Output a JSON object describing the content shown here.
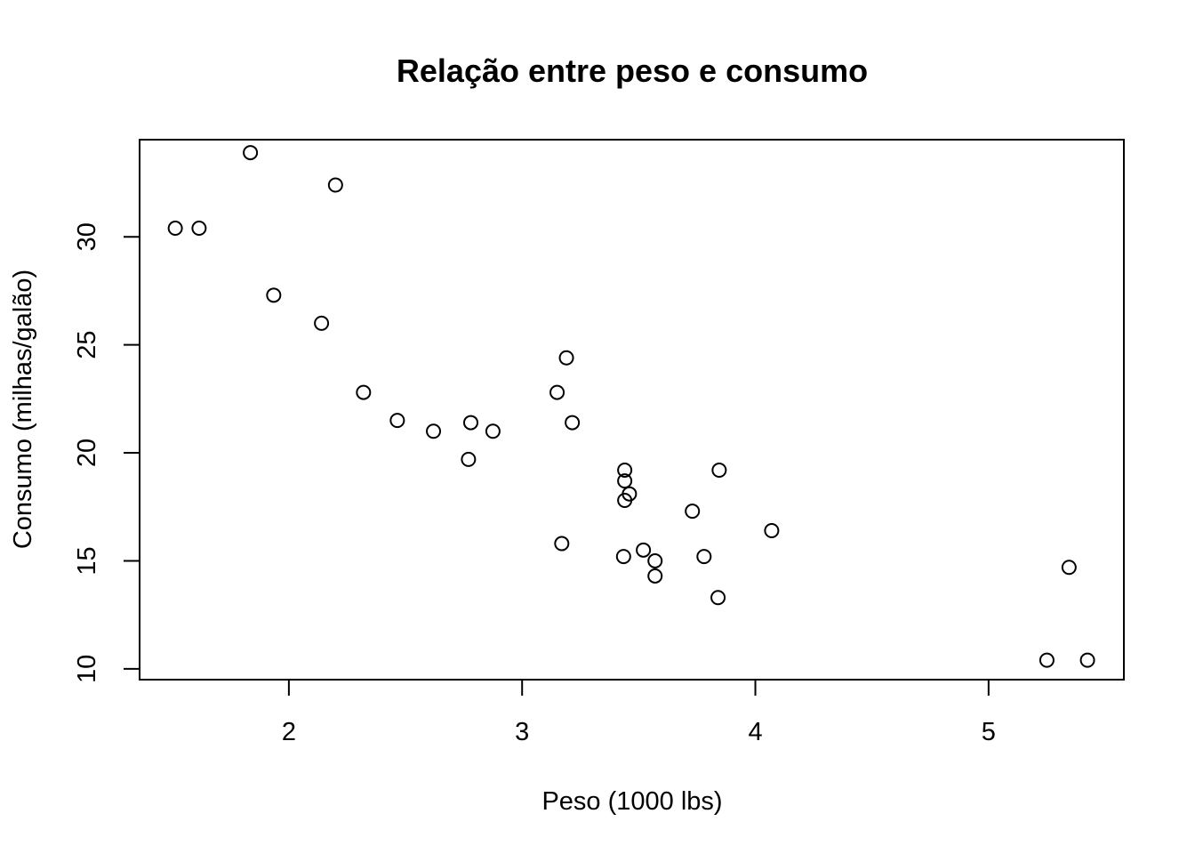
{
  "chart_data": {
    "type": "scatter",
    "title": "Relação entre peso e consumo",
    "xlabel": "Peso (1000 lbs)",
    "ylabel": "Consumo (milhas/galão)",
    "xlim": [
      1.36,
      5.58
    ],
    "ylim": [
      9.5,
      34.5
    ],
    "xticks": [
      2,
      3,
      4,
      5
    ],
    "yticks": [
      10,
      15,
      20,
      25,
      30
    ],
    "grid": false,
    "legend": "none",
    "marker": "open-circle",
    "points": [
      {
        "x": 2.62,
        "y": 21.0
      },
      {
        "x": 2.875,
        "y": 21.0
      },
      {
        "x": 2.32,
        "y": 22.8
      },
      {
        "x": 3.215,
        "y": 21.4
      },
      {
        "x": 3.44,
        "y": 18.7
      },
      {
        "x": 3.46,
        "y": 18.1
      },
      {
        "x": 3.57,
        "y": 14.3
      },
      {
        "x": 3.19,
        "y": 24.4
      },
      {
        "x": 3.15,
        "y": 22.8
      },
      {
        "x": 3.44,
        "y": 19.2
      },
      {
        "x": 3.44,
        "y": 17.8
      },
      {
        "x": 4.07,
        "y": 16.4
      },
      {
        "x": 3.73,
        "y": 17.3
      },
      {
        "x": 3.78,
        "y": 15.2
      },
      {
        "x": 5.25,
        "y": 10.4
      },
      {
        "x": 5.424,
        "y": 10.4
      },
      {
        "x": 5.345,
        "y": 14.7
      },
      {
        "x": 2.2,
        "y": 32.4
      },
      {
        "x": 1.615,
        "y": 30.4
      },
      {
        "x": 1.835,
        "y": 33.9
      },
      {
        "x": 2.465,
        "y": 21.5
      },
      {
        "x": 3.52,
        "y": 15.5
      },
      {
        "x": 3.435,
        "y": 15.2
      },
      {
        "x": 3.84,
        "y": 13.3
      },
      {
        "x": 3.845,
        "y": 19.2
      },
      {
        "x": 1.935,
        "y": 27.3
      },
      {
        "x": 2.14,
        "y": 26.0
      },
      {
        "x": 1.513,
        "y": 30.4
      },
      {
        "x": 3.17,
        "y": 15.8
      },
      {
        "x": 2.77,
        "y": 19.7
      },
      {
        "x": 3.57,
        "y": 15.0
      },
      {
        "x": 2.78,
        "y": 21.4
      }
    ]
  }
}
